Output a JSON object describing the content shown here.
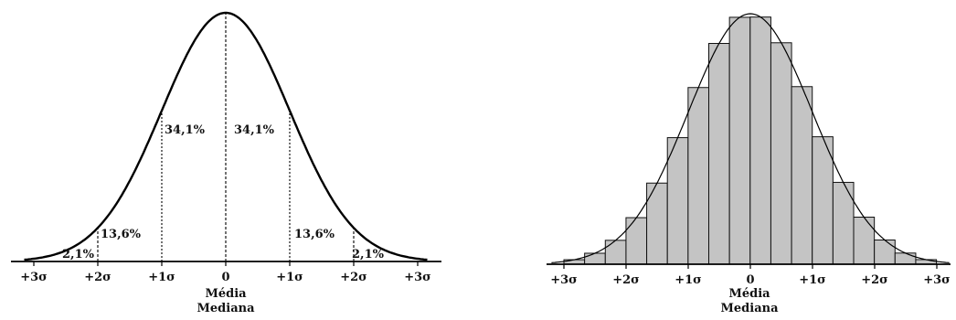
{
  "chart_data": [
    {
      "type": "line",
      "name_role": "normal-curve",
      "x_ticks": [
        "+3σ",
        "+2σ",
        "+1σ",
        "0",
        "+1σ",
        "+2σ",
        "+3σ"
      ],
      "x_caption": [
        "Média",
        "Mediana"
      ],
      "xlim": [
        -3,
        3
      ],
      "area_labels": [
        {
          "text": "2,1%",
          "x": -2.5
        },
        {
          "text": "13,6%",
          "x": -1.5
        },
        {
          "text": "34,1%",
          "x": -0.5
        },
        {
          "text": "34,1%",
          "x": 0.5
        },
        {
          "text": "13,6%",
          "x": 1.5
        },
        {
          "text": "2,1%",
          "x": 2.5
        }
      ],
      "grid": false,
      "color": "#000000"
    },
    {
      "type": "bar",
      "name_role": "histogram-with-curve",
      "x_ticks": [
        "+3σ",
        "+2σ",
        "+1σ",
        "0",
        "+1σ",
        "+2σ",
        "+3σ"
      ],
      "x_caption": [
        "Média",
        "Mediana"
      ],
      "xlim": [
        -3,
        3
      ],
      "bin_width_sigma": 0.333,
      "bar_fill": "#c4c4c4",
      "bar_stroke": "#111111",
      "grid": false
    }
  ]
}
